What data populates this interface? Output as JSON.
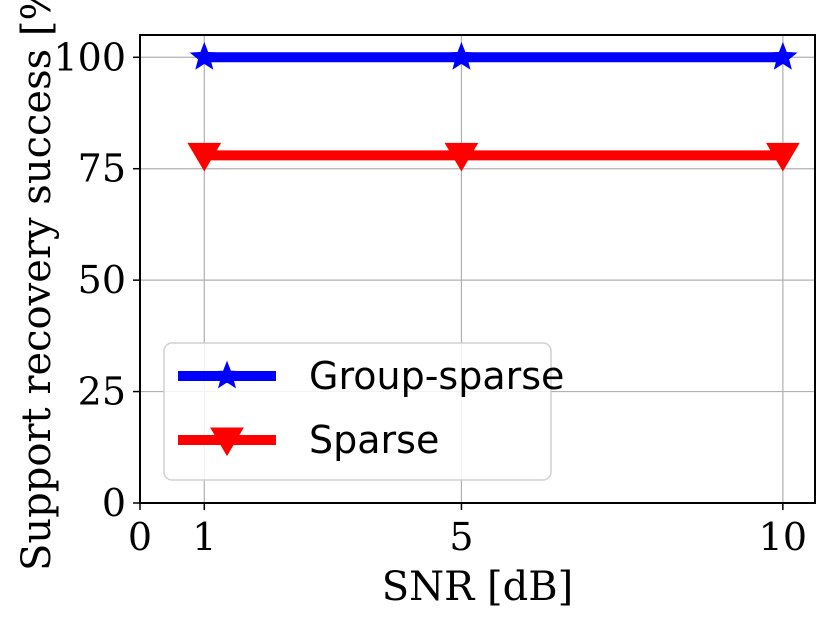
{
  "chart_data": {
    "type": "line",
    "xlabel": "SNR [dB]",
    "ylabel": "Support recovery success [%]",
    "x": [
      1,
      5,
      10
    ],
    "xlim": [
      0,
      10.5
    ],
    "ylim": [
      0,
      105
    ],
    "xticks": [
      0,
      1,
      5,
      10
    ],
    "yticks": [
      0,
      25,
      50,
      75,
      100
    ],
    "grid": true,
    "legend_position": "lower-left",
    "series": [
      {
        "name": "Group-sparse",
        "values": [
          100,
          100,
          100
        ],
        "color": "#0000ff",
        "marker": "star"
      },
      {
        "name": "Sparse",
        "values": [
          78,
          78,
          78
        ],
        "color": "#ff0000",
        "marker": "triangle-down"
      }
    ]
  }
}
